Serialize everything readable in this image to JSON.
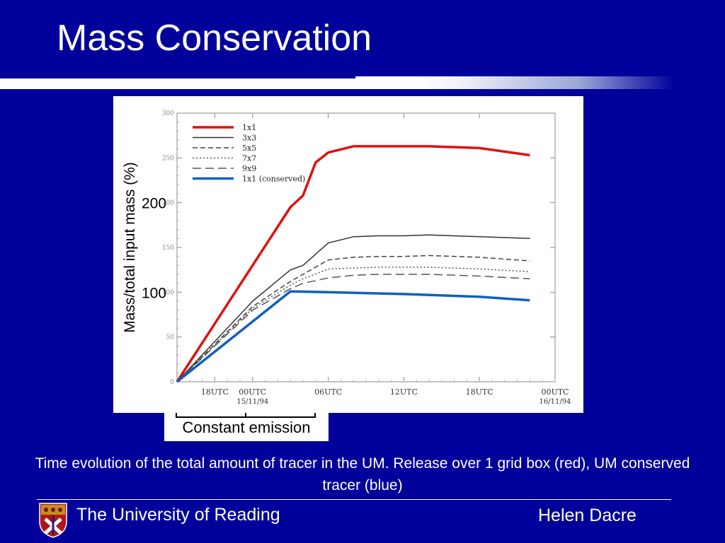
{
  "slide": {
    "title": "Mass Conservation",
    "caption": "Time evolution of the total amount of tracer in the UM.  Release over 1 grid box (red), UM conserved tracer (blue)",
    "annotation": "Constant emission",
    "footer_left": "The University of Reading",
    "footer_right": "Helen Dacre",
    "colors": {
      "background": "#00009a",
      "text": "#ffffff"
    }
  },
  "chart_data": {
    "type": "line",
    "ylabel": "Mass/total input mass (%)",
    "ylim": [
      0,
      300
    ],
    "yticks": [
      0,
      50,
      100,
      150,
      200,
      250,
      300
    ],
    "ytick_overlay_labels": [
      "200",
      "100"
    ],
    "xlim": [
      0,
      28
    ],
    "xticks": [
      {
        "x": 3,
        "label": "18UTC",
        "sub": ""
      },
      {
        "x": 6,
        "label": "00UTC",
        "sub": "15/11/94"
      },
      {
        "x": 12,
        "label": "06UTC",
        "sub": ""
      },
      {
        "x": 18,
        "label": "12UTC",
        "sub": ""
      },
      {
        "x": 24,
        "label": "18UTC",
        "sub": ""
      },
      {
        "x": 30,
        "label": "00UTC",
        "sub": "16/11/94"
      }
    ],
    "grid": false,
    "legend_position": "top-left",
    "series": [
      {
        "name": "1x1",
        "color": "#e01010",
        "dash": "",
        "width": 3.5,
        "x": [
          0,
          3,
          6,
          9,
          10,
          11,
          12,
          14,
          16,
          18,
          20,
          24,
          28
        ],
        "y": [
          0,
          65,
          130,
          195,
          208,
          245,
          256,
          263,
          263,
          263,
          263,
          261,
          253
        ]
      },
      {
        "name": "3x3",
        "color": "#333333",
        "dash": "",
        "width": 1.5,
        "x": [
          0,
          3,
          6,
          9,
          10,
          12,
          14,
          16,
          18,
          20,
          24,
          28
        ],
        "y": [
          0,
          45,
          90,
          125,
          130,
          155,
          162,
          163,
          163,
          164,
          162,
          160
        ]
      },
      {
        "name": "5x5",
        "color": "#444444",
        "dash": "7,4",
        "width": 1.5,
        "x": [
          0,
          3,
          6,
          9,
          10,
          12,
          14,
          16,
          18,
          20,
          24,
          28
        ],
        "y": [
          0,
          42,
          84,
          112,
          120,
          136,
          139,
          140,
          140,
          141,
          139,
          135
        ]
      },
      {
        "name": "7x7",
        "color": "#555555",
        "dash": "2,3",
        "width": 1.5,
        "x": [
          0,
          3,
          6,
          9,
          10,
          12,
          14,
          16,
          18,
          20,
          24,
          28
        ],
        "y": [
          0,
          41,
          82,
          108,
          115,
          126,
          127,
          128,
          128,
          128,
          126,
          123
        ]
      },
      {
        "name": "9x9",
        "color": "#555555",
        "dash": "12,6",
        "width": 1.5,
        "x": [
          0,
          3,
          6,
          9,
          10,
          12,
          14,
          16,
          18,
          20,
          24,
          28
        ],
        "y": [
          0,
          40,
          80,
          104,
          110,
          116,
          119,
          120,
          120,
          120,
          118,
          115
        ]
      },
      {
        "name": "1x1 (conserved)",
        "color": "#1060c0",
        "dash": "",
        "width": 3.5,
        "x": [
          0,
          9,
          12,
          18,
          24,
          28
        ],
        "y": [
          0,
          101,
          100,
          98,
          95,
          91
        ]
      }
    ]
  }
}
